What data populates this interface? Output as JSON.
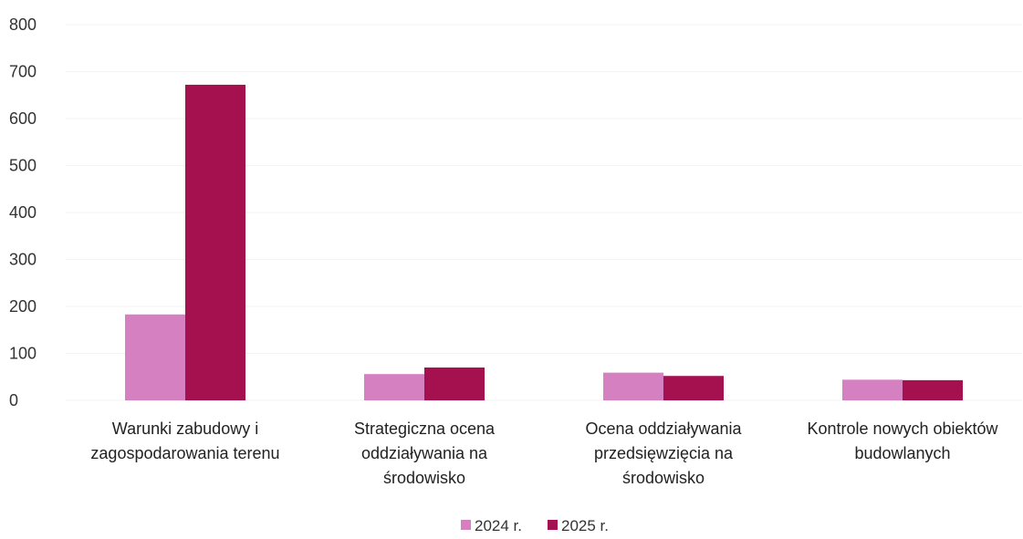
{
  "chart_data": {
    "type": "bar",
    "title": "",
    "xlabel": "",
    "ylabel": "",
    "ylim": [
      0,
      800
    ],
    "yticks": [
      0,
      100,
      200,
      300,
      400,
      500,
      600,
      700,
      800
    ],
    "grid": true,
    "legend_position": "bottom",
    "categories": [
      [
        "Warunki zabudowy i",
        "zagospodarowania terenu"
      ],
      [
        "Strategiczna ocena",
        "oddziaływania na",
        "środowisko"
      ],
      [
        "Ocena oddziaływania",
        "przedsięwzięcia na",
        "środowisko"
      ],
      [
        "Kontrole nowych obiektów",
        "budowlanych"
      ]
    ],
    "series": [
      {
        "name": "2024 r.",
        "color": "#d580c0",
        "values": [
          183,
          56,
          59,
          44
        ]
      },
      {
        "name": "2025 r.",
        "color": "#a5104f",
        "values": [
          672,
          70,
          52,
          43
        ]
      }
    ]
  }
}
